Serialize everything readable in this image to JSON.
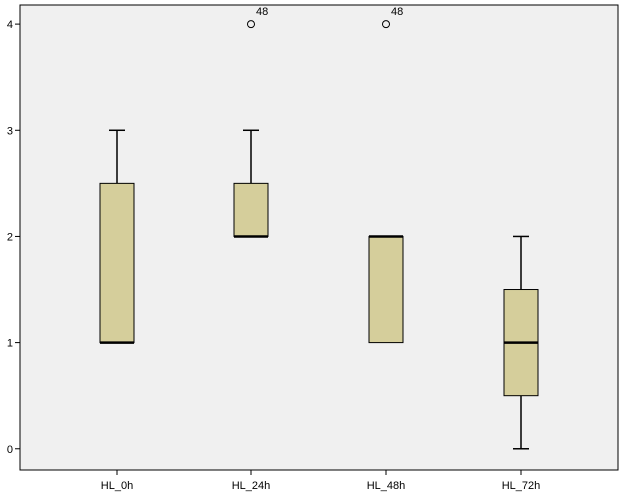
{
  "chart_data": {
    "type": "boxplot",
    "categories": [
      "HL_0h",
      "HL_24h",
      "HL_48h",
      "HL_72h"
    ],
    "ylim": [
      -0.2,
      4.18
    ],
    "yticks": [
      0,
      1,
      2,
      3,
      4
    ],
    "boxes": [
      {
        "min": 1,
        "q1": 1,
        "median": 1,
        "q3": 2.5,
        "max": 3
      },
      {
        "min": 2,
        "q1": 2,
        "median": 2,
        "q3": 2.5,
        "max": 3
      },
      {
        "min": 1,
        "q1": 1,
        "median": 2,
        "q3": 2,
        "max": 2
      },
      {
        "min": 0,
        "q1": 0.5,
        "median": 1,
        "q3": 1.5,
        "max": 2
      }
    ],
    "outliers": [
      {
        "category": "HL_24h",
        "value": 4,
        "label": "48"
      },
      {
        "category": "HL_48h",
        "value": 4,
        "label": "48"
      }
    ],
    "xlabel": "",
    "ylabel": "",
    "grid": false,
    "colors": {
      "box_fill": "#d5ce9b",
      "plot_background": "#f0f0f0",
      "line": "#000000"
    }
  }
}
